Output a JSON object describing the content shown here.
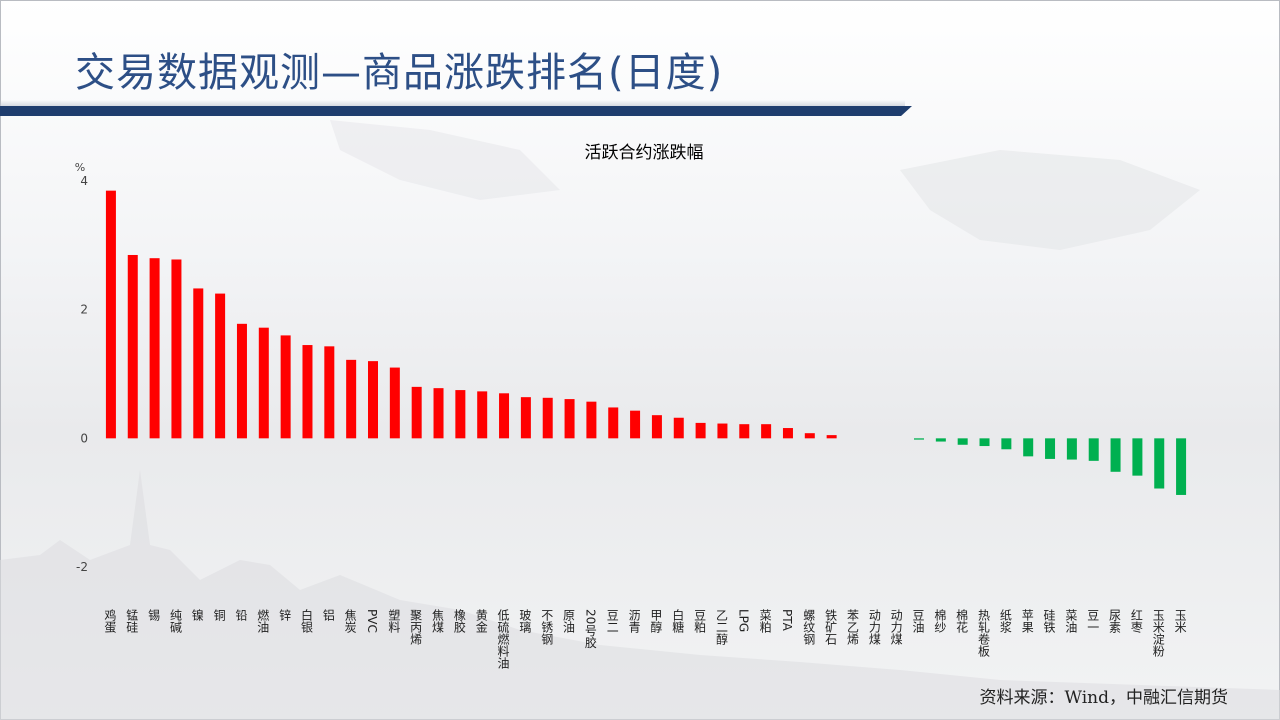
{
  "slide": {
    "title": "交易数据观测—商品涨跌排名(日度)",
    "source": "资料来源：Wind，中融汇信期货"
  },
  "colors": {
    "up": "#ff0000",
    "down": "#00b050",
    "title": "#2d4f86",
    "bar_accent": "#1f3d6e"
  },
  "chart_data": {
    "type": "bar",
    "title": "活跃合约涨跌幅",
    "ylabel": "%",
    "ylim": [
      -2,
      4
    ],
    "yticks": [
      4,
      2,
      0,
      -2
    ],
    "grid": false,
    "legend": "none",
    "categories": [
      "鸡蛋",
      "锰硅",
      "锡",
      "纯碱",
      "镍",
      "铜",
      "铅",
      "燃油",
      "锌",
      "白银",
      "铝",
      "焦炭",
      "PVC",
      "塑料",
      "聚丙烯",
      "焦煤",
      "橡胶",
      "黄金",
      "低硫燃料油",
      "玻璃",
      "不锈钢",
      "原油",
      "20号胶",
      "豆二",
      "沥青",
      "甲醇",
      "白糖",
      "豆粕",
      "乙二醇",
      "LPG",
      "菜粕",
      "PTA",
      "螺纹钢",
      "铁矿石",
      "苯乙烯",
      "动力煤",
      "动力煤",
      "豆油",
      "棉纱",
      "棉花",
      "热轧卷板",
      "纸浆",
      "苹果",
      "硅铁",
      "菜油",
      "豆一",
      "尿素",
      "红枣",
      "玉米淀粉",
      "玉米"
    ],
    "values": [
      3.85,
      2.85,
      2.8,
      2.78,
      2.33,
      2.25,
      1.78,
      1.72,
      1.6,
      1.45,
      1.43,
      1.22,
      1.2,
      1.1,
      0.8,
      0.78,
      0.75,
      0.73,
      0.7,
      0.64,
      0.63,
      0.61,
      0.57,
      0.48,
      0.43,
      0.36,
      0.32,
      0.24,
      0.23,
      0.22,
      0.22,
      0.16,
      0.08,
      0.05,
      0.0,
      0.0,
      0.0,
      -0.02,
      -0.05,
      -0.1,
      -0.12,
      -0.17,
      -0.28,
      -0.32,
      -0.33,
      -0.35,
      -0.52,
      -0.58,
      -0.78,
      -0.88
    ]
  }
}
